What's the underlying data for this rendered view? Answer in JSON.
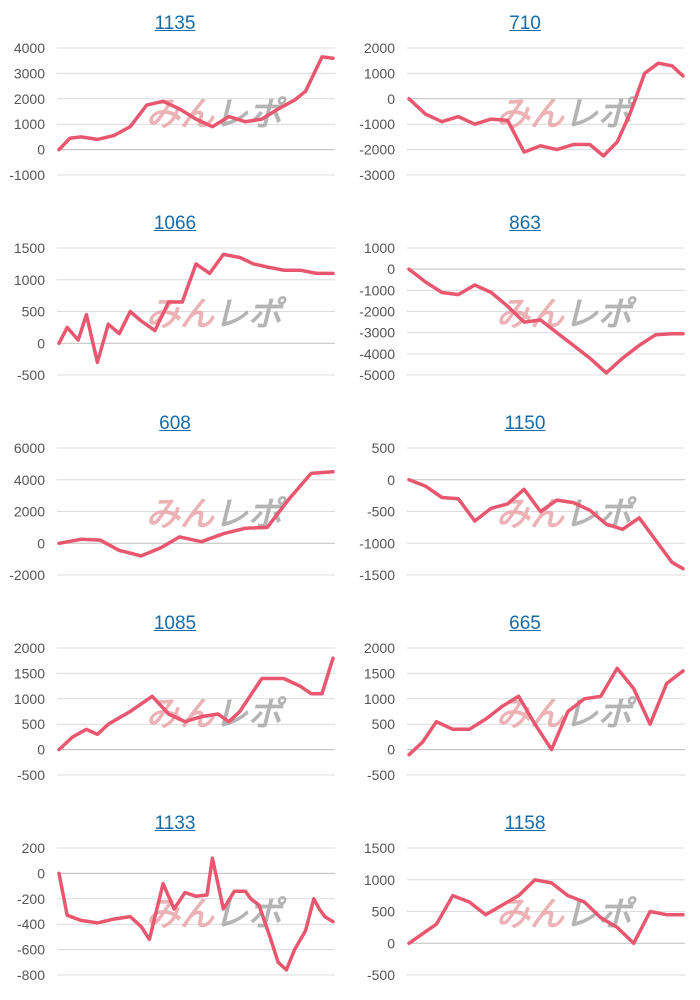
{
  "colors": {
    "line": "#e8576f",
    "grid": "#dcdcdc",
    "zero": "#bdbdbd",
    "title": "#1a6aa8",
    "watermark_pink": "#e9a5a9",
    "watermark_gray": "#a8a8a8"
  },
  "watermark": {
    "text": "みんレポ"
  },
  "chart_data": [
    {
      "type": "line",
      "title": "1135",
      "ylim": [
        -1000,
        4000
      ],
      "yticks": [
        4000,
        3000,
        2000,
        1000,
        0,
        -1000
      ],
      "grid": true,
      "x": [
        0,
        4,
        8,
        14,
        20,
        26,
        32,
        38,
        44,
        50,
        56,
        62,
        68,
        74,
        80,
        86,
        90,
        96,
        100
      ],
      "values": [
        0,
        450,
        500,
        400,
        550,
        900,
        1750,
        1900,
        1600,
        1200,
        900,
        1300,
        1100,
        1200,
        1600,
        1950,
        2300,
        3650,
        3600
      ]
    },
    {
      "type": "line",
      "title": "710",
      "ylim": [
        -3000,
        2000
      ],
      "yticks": [
        2000,
        1000,
        0,
        -1000,
        -2000,
        -3000
      ],
      "grid": true,
      "x": [
        0,
        6,
        12,
        18,
        24,
        30,
        36,
        42,
        48,
        54,
        60,
        66,
        71,
        76,
        81,
        86,
        91,
        96,
        100
      ],
      "values": [
        0,
        -600,
        -900,
        -700,
        -1000,
        -800,
        -850,
        -2100,
        -1850,
        -2000,
        -1800,
        -1800,
        -2250,
        -1700,
        -500,
        1000,
        1400,
        1300,
        900
      ]
    },
    {
      "type": "line",
      "title": "1066",
      "ylim": [
        -500,
        1500
      ],
      "yticks": [
        1500,
        1000,
        500,
        0,
        -500
      ],
      "grid": true,
      "x": [
        0,
        3,
        7,
        10,
        14,
        18,
        22,
        26,
        30,
        35,
        40,
        45,
        50,
        55,
        60,
        66,
        71,
        76,
        82,
        88,
        94,
        100
      ],
      "values": [
        0,
        250,
        50,
        450,
        -300,
        300,
        150,
        500,
        350,
        200,
        650,
        650,
        1250,
        1100,
        1400,
        1350,
        1250,
        1200,
        1150,
        1150,
        1100,
        1100
      ]
    },
    {
      "type": "line",
      "title": "863",
      "ylim": [
        -5000,
        1000
      ],
      "yticks": [
        1000,
        0,
        -1000,
        -2000,
        -3000,
        -4000,
        -5000
      ],
      "grid": true,
      "x": [
        0,
        6,
        12,
        18,
        24,
        30,
        36,
        42,
        48,
        54,
        60,
        66,
        72,
        78,
        84,
        90,
        96,
        100
      ],
      "values": [
        0,
        -600,
        -1100,
        -1200,
        -750,
        -1100,
        -1750,
        -2500,
        -2400,
        -3000,
        -3600,
        -4200,
        -4900,
        -4200,
        -3600,
        -3100,
        -3050,
        -3050
      ]
    },
    {
      "type": "line",
      "title": "608",
      "ylim": [
        -2000,
        6000
      ],
      "yticks": [
        6000,
        4000,
        2000,
        0,
        -2000
      ],
      "grid": true,
      "x": [
        0,
        8,
        15,
        22,
        30,
        37,
        44,
        52,
        60,
        68,
        76,
        84,
        92,
        100
      ],
      "values": [
        0,
        250,
        200,
        -450,
        -800,
        -300,
        400,
        100,
        600,
        950,
        1000,
        2800,
        4400,
        4500
      ]
    },
    {
      "type": "line",
      "title": "1150",
      "ylim": [
        -1500,
        500
      ],
      "yticks": [
        500,
        0,
        -500,
        -1000,
        -1500
      ],
      "grid": true,
      "x": [
        0,
        6,
        12,
        18,
        24,
        30,
        36,
        42,
        48,
        54,
        60,
        66,
        72,
        78,
        84,
        90,
        96,
        100
      ],
      "values": [
        0,
        -100,
        -280,
        -300,
        -650,
        -450,
        -380,
        -150,
        -500,
        -320,
        -360,
        -480,
        -700,
        -780,
        -600,
        -950,
        -1300,
        -1400
      ]
    },
    {
      "type": "line",
      "title": "1085",
      "ylim": [
        -500,
        2000
      ],
      "yticks": [
        2000,
        1500,
        1000,
        500,
        0,
        -500
      ],
      "grid": true,
      "x": [
        0,
        5,
        10,
        14,
        18,
        26,
        34,
        40,
        46,
        52,
        58,
        62,
        66,
        74,
        82,
        88,
        92,
        96,
        100
      ],
      "values": [
        0,
        250,
        400,
        300,
        500,
        750,
        1050,
        700,
        550,
        650,
        700,
        550,
        750,
        1400,
        1400,
        1250,
        1100,
        1100,
        1800
      ]
    },
    {
      "type": "line",
      "title": "665",
      "ylim": [
        -500,
        2000
      ],
      "yticks": [
        2000,
        1500,
        1000,
        500,
        0,
        -500
      ],
      "grid": true,
      "x": [
        0,
        5,
        10,
        16,
        22,
        28,
        34,
        40,
        46,
        52,
        58,
        64,
        70,
        76,
        82,
        88,
        94,
        100
      ],
      "values": [
        -100,
        150,
        550,
        400,
        400,
        600,
        850,
        1050,
        500,
        0,
        750,
        1000,
        1050,
        1600,
        1200,
        500,
        1300,
        1550
      ]
    },
    {
      "type": "line",
      "title": "1133",
      "ylim": [
        -800,
        200
      ],
      "yticks": [
        200,
        0,
        -200,
        -400,
        -600,
        -800
      ],
      "grid": true,
      "x": [
        0,
        3,
        8,
        14,
        20,
        26,
        30,
        33,
        38,
        42,
        46,
        50,
        54,
        56,
        60,
        64,
        68,
        70,
        73,
        77,
        80,
        83,
        86,
        90,
        93,
        95,
        97,
        100
      ],
      "values": [
        0,
        -330,
        -370,
        -390,
        -360,
        -340,
        -420,
        -520,
        -80,
        -280,
        -150,
        -180,
        -170,
        120,
        -280,
        -140,
        -140,
        -200,
        -250,
        -500,
        -700,
        -760,
        -600,
        -450,
        -200,
        -280,
        -340,
        -380
      ]
    },
    {
      "type": "line",
      "title": "1158",
      "ylim": [
        -500,
        1500
      ],
      "yticks": [
        1500,
        1000,
        500,
        0,
        -500
      ],
      "grid": true,
      "x": [
        0,
        5,
        10,
        16,
        22,
        28,
        34,
        40,
        46,
        52,
        58,
        64,
        70,
        76,
        82,
        88,
        94,
        100
      ],
      "values": [
        0,
        150,
        300,
        750,
        650,
        450,
        600,
        750,
        1000,
        950,
        750,
        650,
        400,
        250,
        0,
        500,
        450,
        450
      ]
    }
  ]
}
